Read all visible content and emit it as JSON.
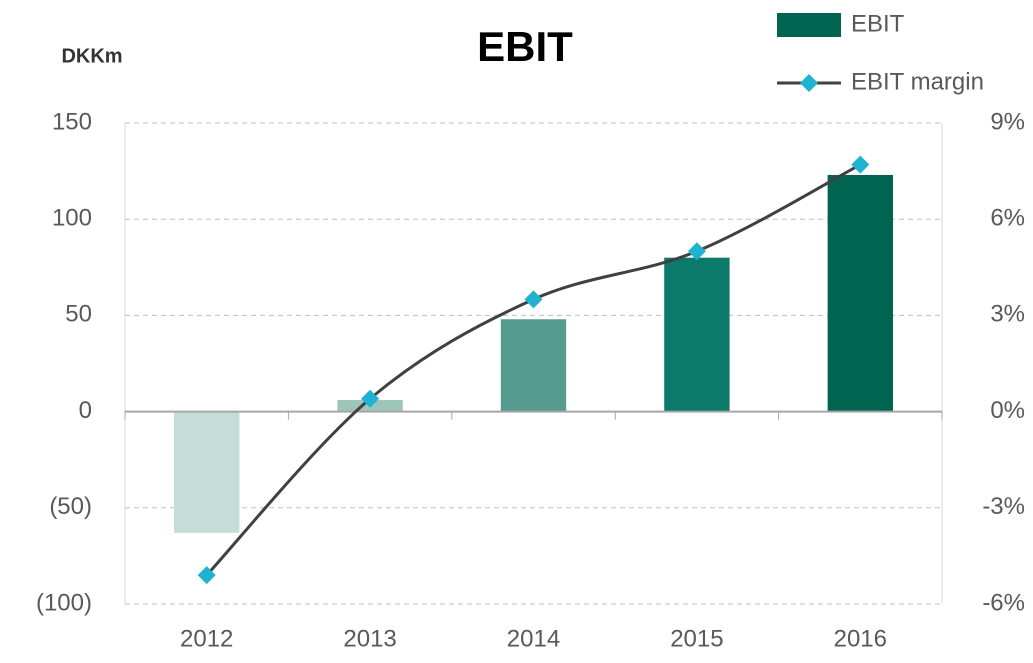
{
  "chart_data": {
    "type": "bar_line",
    "title": "EBIT",
    "y_label": "DKKm",
    "categories": [
      "2012",
      "2013",
      "2014",
      "2015",
      "2016"
    ],
    "series": [
      {
        "name": "EBIT",
        "type": "bar",
        "color": "#006450",
        "colors": [
          "#c5ddd7",
          "#9ec5b9",
          "#559b8f",
          "#0b7a6b",
          "#006450"
        ],
        "values": [
          -63,
          6,
          48,
          80,
          123
        ]
      },
      {
        "name": "EBIT margin",
        "type": "line",
        "axis": "y2",
        "color": "#404040",
        "marker_color": "#1fb3d1",
        "values": [
          -5.1,
          0.4,
          3.5,
          5.0,
          7.7
        ]
      }
    ],
    "ylim": [
      -100,
      150
    ],
    "yticks": [
      {
        "value": -100,
        "label": "(100)"
      },
      {
        "value": -50,
        "label": "(50)"
      },
      0,
      50,
      100,
      150
    ],
    "y2lim": [
      -6,
      9
    ],
    "y2ticks": [
      {
        "value": -6,
        "label": "-6%"
      },
      {
        "value": -3,
        "label": "-3%"
      },
      {
        "value": 0,
        "label": "0%"
      },
      {
        "value": 3,
        "label": "3%"
      },
      {
        "value": 6,
        "label": "6%"
      },
      {
        "value": 9,
        "label": "9%"
      }
    ],
    "grid": true,
    "legend": "top-right"
  }
}
